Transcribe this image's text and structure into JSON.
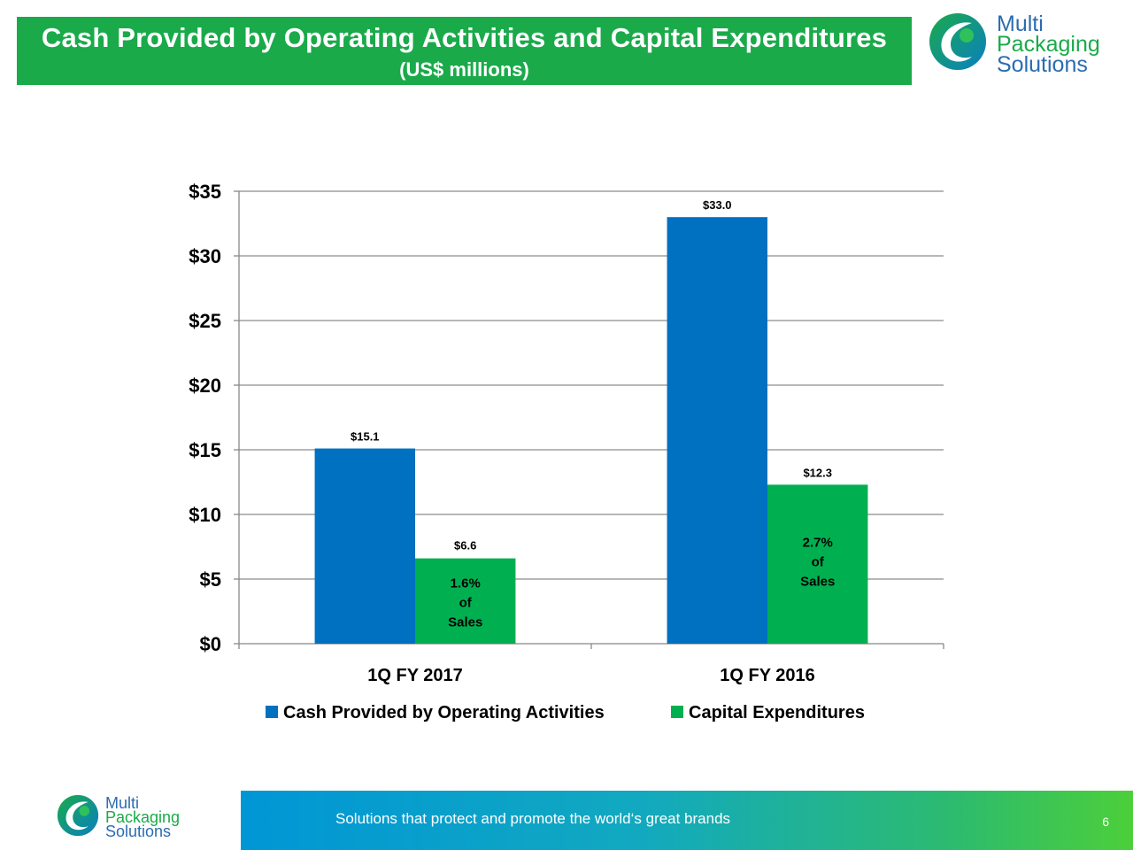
{
  "header": {
    "title": "Cash Provided by Operating Activities and Capital Expenditures",
    "subtitle": "(US$ millions)"
  },
  "logo": {
    "line1": "Multi",
    "line2": "Packaging",
    "line3": "Solutions"
  },
  "footer": {
    "tagline": "Solutions that protect and promote the world‘s great brands",
    "page_number": "6"
  },
  "colors": {
    "blue": "#0070c0",
    "green": "#00b050",
    "header_green": "#1aaa4a"
  },
  "chart_data": {
    "type": "bar",
    "title": "Cash Provided by Operating Activities and Capital Expenditures",
    "subtitle": "(US$ millions)",
    "categories": [
      "1Q FY 2017",
      "1Q FY 2016"
    ],
    "series": [
      {
        "name": "Cash Provided by Operating Activities",
        "values": [
          15.1,
          33.0
        ],
        "labels": [
          "$15.1",
          "$33.0"
        ],
        "color": "#0070c0"
      },
      {
        "name": "Capital Expenditures",
        "values": [
          6.6,
          12.3
        ],
        "labels": [
          "$6.6",
          "$12.3"
        ],
        "color": "#00b050",
        "inner_labels": [
          [
            "1.6%",
            "of",
            "Sales"
          ],
          [
            "2.7%",
            "of",
            "Sales"
          ]
        ]
      }
    ],
    "yticks": [
      0,
      5,
      10,
      15,
      20,
      25,
      30,
      35
    ],
    "ytick_labels": [
      "$0",
      "$5",
      "$10",
      "$15",
      "$20",
      "$25",
      "$30",
      "$35"
    ],
    "ylim": [
      0,
      35
    ],
    "grid": true,
    "legend": "bottom",
    "xlabel": "",
    "ylabel": ""
  }
}
